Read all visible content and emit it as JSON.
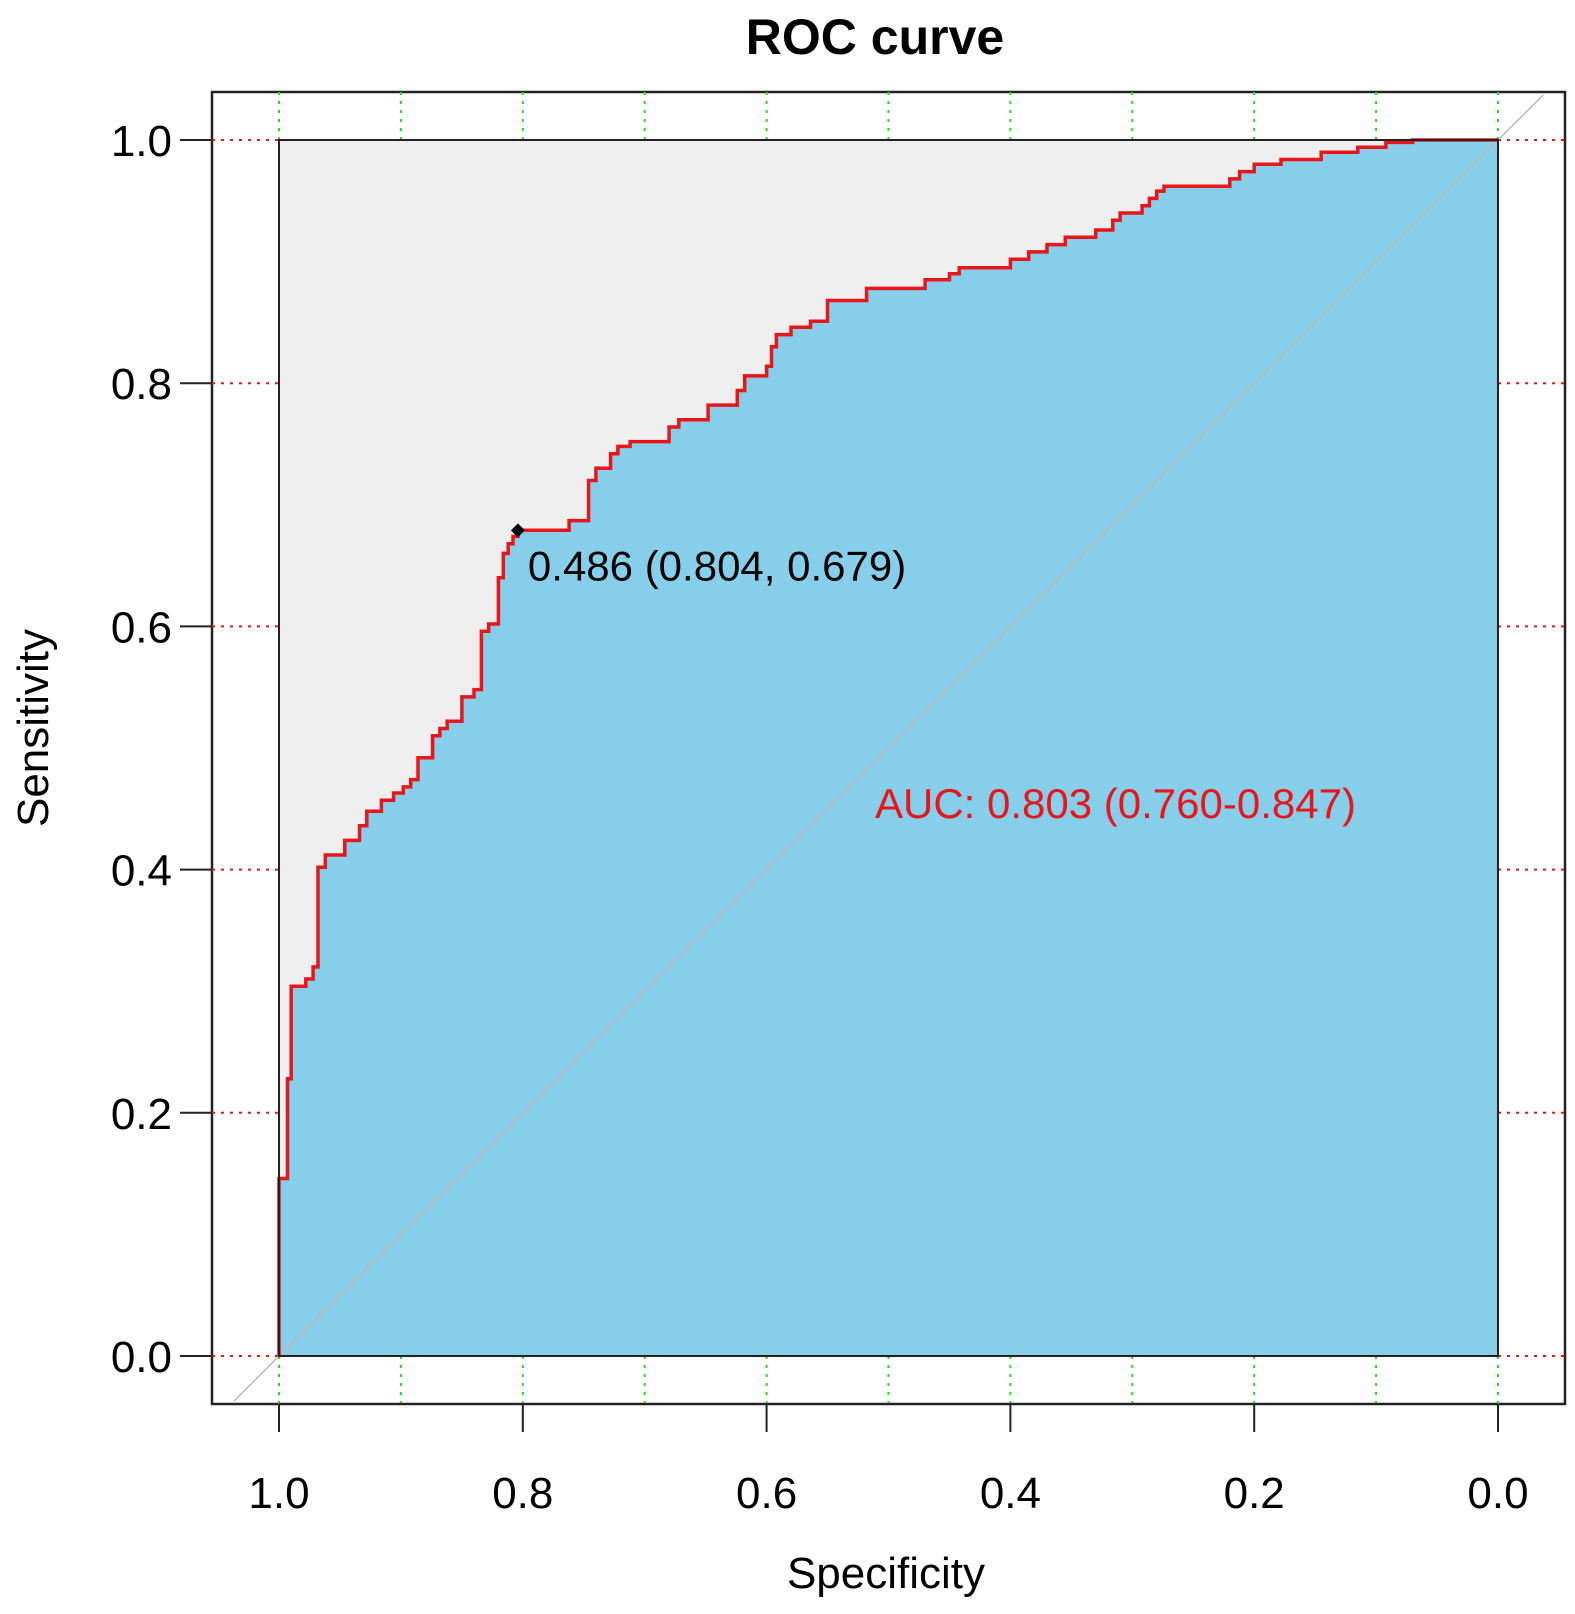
{
  "chart_data": {
    "type": "line",
    "title": "ROC curve",
    "xlabel": "Specificity",
    "ylabel": "Sensitivity",
    "xlim": [
      1.0,
      0.0
    ],
    "ylim": [
      0.0,
      1.0
    ],
    "xticks": [
      1.0,
      0.8,
      0.6,
      0.4,
      0.2,
      0.0
    ],
    "xtick_labels": [
      "1.0",
      "0.8",
      "0.6",
      "0.4",
      "0.2",
      "0.0"
    ],
    "yticks": [
      0.0,
      0.2,
      0.4,
      0.6,
      0.8,
      1.0
    ],
    "ytick_labels": [
      "0.0",
      "0.2",
      "0.4",
      "0.6",
      "0.8",
      "1.0"
    ],
    "grid": true,
    "vertical_grid_at": [
      1.0,
      0.9,
      0.8,
      0.7,
      0.6,
      0.5,
      0.4,
      0.3,
      0.2,
      0.1,
      0.0
    ],
    "horizontal_grid_at": [
      0.0,
      0.2,
      0.4,
      0.6,
      0.8,
      1.0
    ],
    "series": [
      {
        "name": "ROC",
        "color": "#e8161b",
        "fill_color": "#87ceeb",
        "points": [
          [
            1.0,
            0.0
          ],
          [
            1.0,
            0.146
          ],
          [
            0.993,
            0.146
          ],
          [
            0.993,
            0.228
          ],
          [
            0.99,
            0.228
          ],
          [
            0.99,
            0.304
          ],
          [
            0.978,
            0.304
          ],
          [
            0.978,
            0.31
          ],
          [
            0.972,
            0.31
          ],
          [
            0.972,
            0.32
          ],
          [
            0.968,
            0.32
          ],
          [
            0.968,
            0.402
          ],
          [
            0.962,
            0.402
          ],
          [
            0.962,
            0.412
          ],
          [
            0.946,
            0.412
          ],
          [
            0.946,
            0.424
          ],
          [
            0.934,
            0.424
          ],
          [
            0.934,
            0.436
          ],
          [
            0.928,
            0.436
          ],
          [
            0.928,
            0.448
          ],
          [
            0.916,
            0.448
          ],
          [
            0.916,
            0.457
          ],
          [
            0.906,
            0.457
          ],
          [
            0.906,
            0.463
          ],
          [
            0.898,
            0.463
          ],
          [
            0.898,
            0.468
          ],
          [
            0.892,
            0.468
          ],
          [
            0.892,
            0.474
          ],
          [
            0.886,
            0.474
          ],
          [
            0.886,
            0.492
          ],
          [
            0.874,
            0.492
          ],
          [
            0.874,
            0.51
          ],
          [
            0.868,
            0.51
          ],
          [
            0.868,
            0.516
          ],
          [
            0.862,
            0.516
          ],
          [
            0.862,
            0.522
          ],
          [
            0.85,
            0.522
          ],
          [
            0.85,
            0.542
          ],
          [
            0.84,
            0.542
          ],
          [
            0.84,
            0.548
          ],
          [
            0.834,
            0.548
          ],
          [
            0.834,
            0.596
          ],
          [
            0.828,
            0.596
          ],
          [
            0.828,
            0.602
          ],
          [
            0.82,
            0.602
          ],
          [
            0.82,
            0.64
          ],
          [
            0.816,
            0.64
          ],
          [
            0.816,
            0.66
          ],
          [
            0.812,
            0.66
          ],
          [
            0.812,
            0.668
          ],
          [
            0.808,
            0.668
          ],
          [
            0.808,
            0.674
          ],
          [
            0.804,
            0.674
          ],
          [
            0.804,
            0.679
          ],
          [
            0.762,
            0.679
          ],
          [
            0.762,
            0.687
          ],
          [
            0.746,
            0.687
          ],
          [
            0.746,
            0.72
          ],
          [
            0.74,
            0.72
          ],
          [
            0.74,
            0.73
          ],
          [
            0.728,
            0.73
          ],
          [
            0.728,
            0.742
          ],
          [
            0.722,
            0.742
          ],
          [
            0.722,
            0.748
          ],
          [
            0.712,
            0.748
          ],
          [
            0.712,
            0.752
          ],
          [
            0.68,
            0.752
          ],
          [
            0.68,
            0.764
          ],
          [
            0.672,
            0.764
          ],
          [
            0.672,
            0.77
          ],
          [
            0.648,
            0.77
          ],
          [
            0.648,
            0.782
          ],
          [
            0.624,
            0.782
          ],
          [
            0.624,
            0.794
          ],
          [
            0.618,
            0.794
          ],
          [
            0.618,
            0.806
          ],
          [
            0.6,
            0.806
          ],
          [
            0.6,
            0.814
          ],
          [
            0.596,
            0.814
          ],
          [
            0.596,
            0.83
          ],
          [
            0.592,
            0.83
          ],
          [
            0.592,
            0.84
          ],
          [
            0.58,
            0.84
          ],
          [
            0.58,
            0.846
          ],
          [
            0.564,
            0.846
          ],
          [
            0.564,
            0.851
          ],
          [
            0.55,
            0.851
          ],
          [
            0.55,
            0.868
          ],
          [
            0.518,
            0.868
          ],
          [
            0.518,
            0.878
          ],
          [
            0.47,
            0.878
          ],
          [
            0.47,
            0.885
          ],
          [
            0.45,
            0.885
          ],
          [
            0.45,
            0.89
          ],
          [
            0.442,
            0.89
          ],
          [
            0.442,
            0.895
          ],
          [
            0.4,
            0.895
          ],
          [
            0.4,
            0.902
          ],
          [
            0.385,
            0.902
          ],
          [
            0.385,
            0.908
          ],
          [
            0.37,
            0.908
          ],
          [
            0.37,
            0.914
          ],
          [
            0.355,
            0.914
          ],
          [
            0.355,
            0.92
          ],
          [
            0.33,
            0.92
          ],
          [
            0.33,
            0.926
          ],
          [
            0.316,
            0.926
          ],
          [
            0.316,
            0.934
          ],
          [
            0.31,
            0.934
          ],
          [
            0.31,
            0.94
          ],
          [
            0.292,
            0.94
          ],
          [
            0.292,
            0.946
          ],
          [
            0.286,
            0.946
          ],
          [
            0.286,
            0.952
          ],
          [
            0.28,
            0.952
          ],
          [
            0.28,
            0.958
          ],
          [
            0.274,
            0.958
          ],
          [
            0.274,
            0.962
          ],
          [
            0.22,
            0.962
          ],
          [
            0.22,
            0.968
          ],
          [
            0.212,
            0.968
          ],
          [
            0.212,
            0.974
          ],
          [
            0.2,
            0.974
          ],
          [
            0.2,
            0.98
          ],
          [
            0.178,
            0.98
          ],
          [
            0.178,
            0.984
          ],
          [
            0.145,
            0.984
          ],
          [
            0.145,
            0.99
          ],
          [
            0.115,
            0.99
          ],
          [
            0.115,
            0.994
          ],
          [
            0.092,
            0.994
          ],
          [
            0.092,
            0.998
          ],
          [
            0.07,
            0.998
          ],
          [
            0.07,
            1.0
          ],
          [
            0.0,
            1.0
          ]
        ]
      }
    ],
    "threshold_point": {
      "specificity": 0.804,
      "sensitivity": 0.679,
      "label": "0.486 (0.804, 0.679)"
    },
    "annotations": [
      {
        "text": "AUC: 0.803 (0.760-0.847)",
        "color": "#e8161b"
      }
    ],
    "diagonal_reference": true
  }
}
